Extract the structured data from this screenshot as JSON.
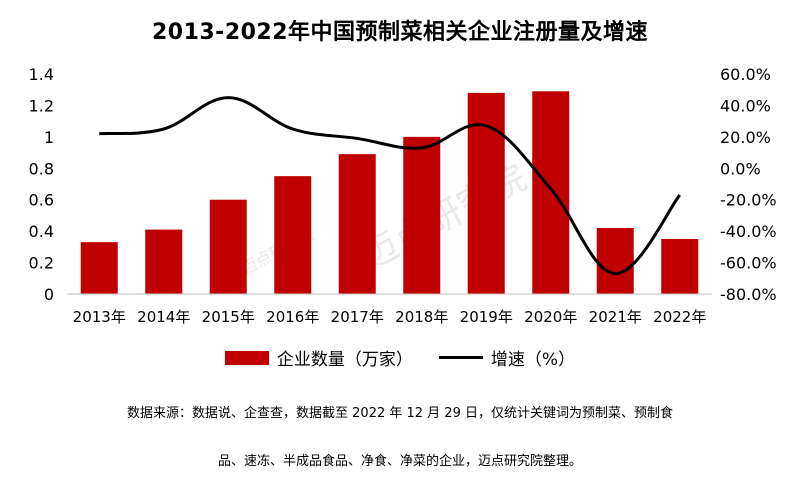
{
  "chart_data": {
    "type": "bar",
    "title": "2013-2022年中国预制菜相关企业注册量及增速",
    "categories": [
      "2013年",
      "2014年",
      "2015年",
      "2016年",
      "2017年",
      "2018年",
      "2019年",
      "2020年",
      "2021年",
      "2022年"
    ],
    "series": [
      {
        "name": "企业数量（万家）",
        "type": "bar",
        "axis": "left",
        "color": "#c00000",
        "values": [
          0.33,
          0.41,
          0.6,
          0.75,
          0.89,
          1.0,
          1.28,
          1.29,
          0.42,
          0.35
        ]
      },
      {
        "name": "增速（%）",
        "type": "line",
        "axis": "right",
        "color": "#000000",
        "values": [
          22,
          25,
          45,
          25,
          19,
          13,
          27,
          -13,
          -67,
          -17
        ]
      }
    ],
    "y_left": {
      "min": 0,
      "max": 1.4,
      "ticks": [
        0,
        0.2,
        0.4,
        0.6,
        0.8,
        1,
        1.2,
        1.4
      ],
      "tick_labels": [
        "0",
        "0.2",
        "0.4",
        "0.6",
        "0.8",
        "1",
        "1.2",
        "1.4"
      ]
    },
    "y_right": {
      "min": -80,
      "max": 60,
      "ticks": [
        -80,
        -60,
        -40,
        -20,
        0,
        20,
        40,
        60
      ],
      "tick_labels": [
        "-80.0%",
        "-60.0%",
        "-40.0%",
        "-20.0%",
        "0.0%",
        "20.0%",
        "40.0%",
        "60.0%"
      ]
    },
    "grid": false,
    "legend_position": "bottom"
  },
  "source_note": {
    "line1": "数据来源：数据说、企查查，数据截至 2022 年 12 月 29 日，仅统计关键词为预制菜、预制食",
    "line2": "品、速冻、半成品食品、净食、净菜的企业，迈点研究院整理。"
  }
}
